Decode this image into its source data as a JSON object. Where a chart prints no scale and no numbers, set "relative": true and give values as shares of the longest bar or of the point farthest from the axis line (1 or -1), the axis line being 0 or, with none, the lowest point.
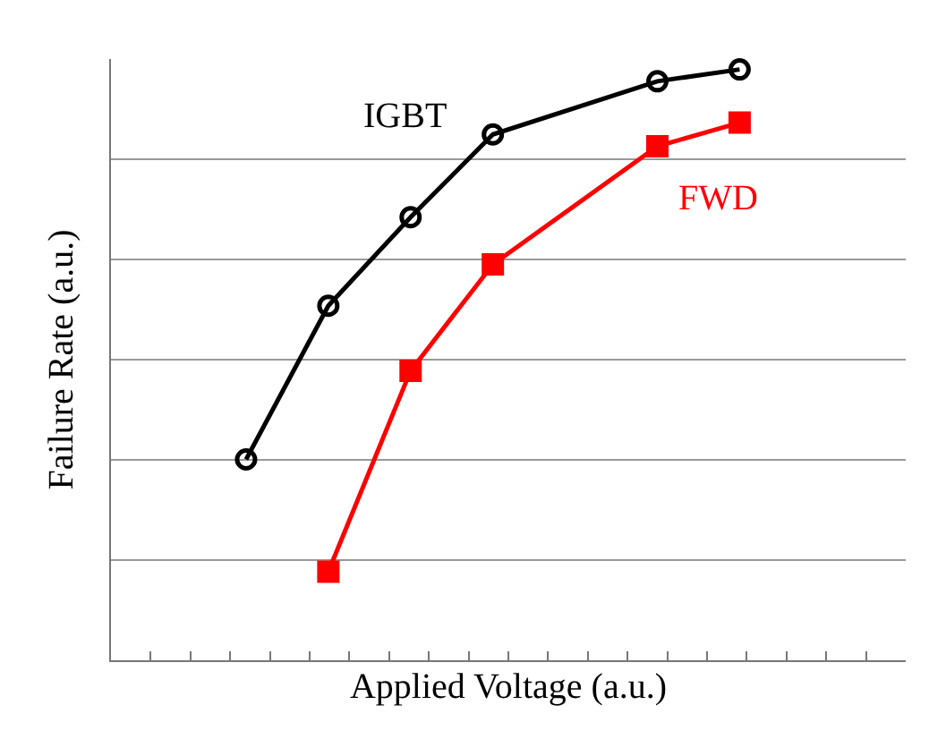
{
  "chart_data": {
    "type": "line",
    "relative": true,
    "xlabel": "Applied Voltage (a.u.)",
    "ylabel": "Failure Rate (a.u.)",
    "categories": [
      null,
      null,
      null,
      null,
      null,
      null,
      null
    ],
    "grid": "y",
    "legend": false,
    "line_style": "solid",
    "series": [
      {
        "name": "IGBT",
        "color": "#000000",
        "marker": "circle",
        "values": [
          0.34,
          0.6,
          0.75,
          0.89,
          null,
          0.98,
          1.0
        ]
      },
      {
        "name": "FWD",
        "color": "#ff0000",
        "marker": "square",
        "values": [
          null,
          0.15,
          0.49,
          0.67,
          null,
          0.87,
          0.91
        ]
      }
    ]
  }
}
